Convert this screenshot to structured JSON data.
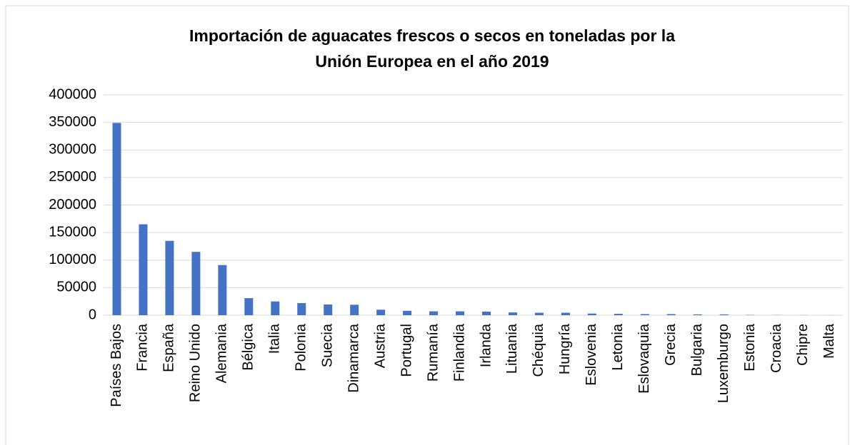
{
  "chart_data": {
    "type": "bar",
    "title": [
      "Importación de aguacates frescos o secos en toneladas por la",
      "Unión Europea en el año 2019"
    ],
    "categories": [
      "Países Bajos",
      "Francia",
      "España",
      "Reino Unido",
      "Alemania",
      "Bélgica",
      "Italia",
      "Polonia",
      "Suecia",
      "Dinamarca",
      "Austria",
      "Portugal",
      "Rumanía",
      "Finlandia",
      "Irlanda",
      "Lituania",
      "Chéquia",
      "Hungría",
      "Eslovenia",
      "Letonia",
      "Eslovaquia",
      "Grecia",
      "Bulgaria",
      "Luxemburgo",
      "Estonia",
      "Croacia",
      "Chipre",
      "Malta"
    ],
    "values": [
      349000,
      165000,
      135000,
      115000,
      91000,
      31000,
      25000,
      22000,
      19500,
      19000,
      10000,
      8000,
      7000,
      7000,
      6500,
      5000,
      4500,
      4500,
      3000,
      2500,
      2000,
      2000,
      1500,
      1500,
      500,
      300,
      200,
      100
    ],
    "color": "#4472c4",
    "ylim": [
      0,
      400000
    ],
    "yticks": [
      0,
      50000,
      100000,
      150000,
      200000,
      250000,
      300000,
      350000,
      400000
    ],
    "grid": true
  }
}
